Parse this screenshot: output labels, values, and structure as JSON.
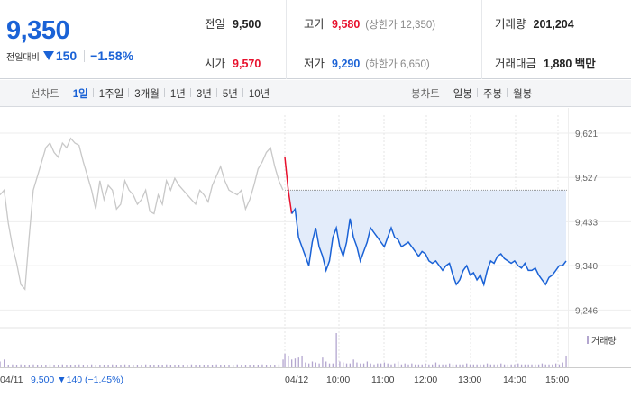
{
  "quote": {
    "price": "9,350",
    "change_label": "전일대비",
    "change_amount": "150",
    "change_pct": "−1.58%"
  },
  "stats": {
    "prev_close": {
      "label": "전일",
      "value": "9,500"
    },
    "open": {
      "label": "시가",
      "value": "9,570"
    },
    "high": {
      "label": "고가",
      "value": "9,580",
      "sub": "(상한가 12,350)"
    },
    "low": {
      "label": "저가",
      "value": "9,290",
      "sub": "(하한가 6,650)"
    },
    "volume": {
      "label": "거래량",
      "value": "201,204"
    },
    "amount": {
      "label": "거래대금",
      "value": "1,880 백만"
    }
  },
  "toolbar": {
    "line_label": "선차트",
    "line_items": [
      "1일",
      "1주일",
      "3개월",
      "1년",
      "3년",
      "5년",
      "10년"
    ],
    "active": "1일",
    "candle_label": "봉차트",
    "candle_items": [
      "일봉",
      "주봉",
      "월봉"
    ]
  },
  "colors": {
    "up": "#e8112d",
    "down": "#1a62d6",
    "prev_day_line": "#c8c8c8",
    "area_fill": "#e3ecfa",
    "volume_bar": "#b3a6cf"
  },
  "chart_data": {
    "type": "line",
    "ylim": [
      9220,
      9640
    ],
    "yticks": [
      "9,621",
      "9,527",
      "9,433",
      "9,340",
      "9,246"
    ],
    "ytick_values": [
      9621,
      9527,
      9433,
      9340,
      9246
    ],
    "baseline": 9500,
    "xticks": [
      "04/11",
      "04/12",
      "10:00",
      "11:00",
      "12:00",
      "13:00",
      "14:00",
      "15:00"
    ],
    "prev_day_summary": {
      "date": "04/11",
      "close": "9,500",
      "change": "▼140",
      "pct": "(−1.45%)"
    },
    "volume_legend": "거래량",
    "series": [
      {
        "name": "04/11",
        "values": [
          9490,
          9500,
          9430,
          9380,
          9345,
          9300,
          9290,
          9400,
          9500,
          9530,
          9560,
          9590,
          9600,
          9580,
          9570,
          9600,
          9590,
          9610,
          9600,
          9595,
          9560,
          9530,
          9500,
          9460,
          9520,
          9480,
          9510,
          9500,
          9460,
          9470,
          9520,
          9500,
          9490,
          9470,
          9480,
          9500,
          9455,
          9450,
          9490,
          9470,
          9520,
          9500,
          9525,
          9510,
          9500,
          9490,
          9480,
          9470,
          9500,
          9490,
          9475,
          9510,
          9530,
          9550,
          9520,
          9500,
          9495,
          9490,
          9500,
          9460,
          9480,
          9510,
          9545,
          9560,
          9580,
          9590,
          9550,
          9520,
          9500
        ]
      },
      {
        "name": "04/12",
        "values": [
          9570,
          9500,
          9450,
          9460,
          9400,
          9380,
          9360,
          9340,
          9390,
          9420,
          9380,
          9360,
          9330,
          9350,
          9400,
          9420,
          9380,
          9360,
          9390,
          9440,
          9400,
          9380,
          9350,
          9370,
          9390,
          9420,
          9410,
          9400,
          9390,
          9380,
          9400,
          9420,
          9400,
          9395,
          9380,
          9385,
          9390,
          9380,
          9370,
          9360,
          9370,
          9365,
          9350,
          9345,
          9350,
          9340,
          9330,
          9340,
          9345,
          9320,
          9300,
          9310,
          9330,
          9340,
          9320,
          9325,
          9310,
          9320,
          9300,
          9330,
          9350,
          9345,
          9360,
          9365,
          9355,
          9350,
          9345,
          9350,
          9340,
          9335,
          9345,
          9330,
          9330,
          9335,
          9320,
          9310,
          9300,
          9315,
          9320,
          9330,
          9340,
          9340,
          9350
        ]
      }
    ],
    "volume": [
      {
        "name": "04/11",
        "values": [
          6,
          8,
          2,
          3,
          2,
          3,
          2,
          2,
          3,
          2,
          2,
          2,
          3,
          2,
          2,
          3,
          2,
          2,
          2,
          3,
          2,
          2,
          3,
          2,
          2,
          2,
          2,
          3,
          2,
          2,
          3,
          2,
          2,
          2,
          2,
          3,
          2,
          2,
          2,
          2,
          3,
          2,
          2,
          2,
          2,
          2,
          3,
          2,
          2,
          2,
          2,
          2,
          3,
          2,
          2,
          2,
          2,
          3,
          2,
          2,
          2,
          2,
          2,
          3,
          2,
          2,
          2,
          3,
          8
        ]
      },
      {
        "name": "04/12",
        "values": [
          14,
          12,
          8,
          9,
          10,
          12,
          5,
          4,
          6,
          5,
          4,
          10,
          6,
          4,
          4,
          35,
          6,
          5,
          4,
          4,
          8,
          5,
          4,
          4,
          6,
          4,
          3,
          4,
          4,
          5,
          4,
          3,
          4,
          6,
          3,
          4,
          3,
          4,
          3,
          3,
          3,
          4,
          3,
          3,
          5,
          3,
          3,
          3,
          4,
          3,
          3,
          3,
          3,
          4,
          3,
          3,
          3,
          3,
          3,
          4,
          3,
          3,
          3,
          4,
          3,
          3,
          3,
          3,
          4,
          3,
          3,
          3,
          3,
          3,
          3,
          4,
          3,
          3,
          3,
          4,
          3,
          5,
          12
        ]
      }
    ]
  }
}
